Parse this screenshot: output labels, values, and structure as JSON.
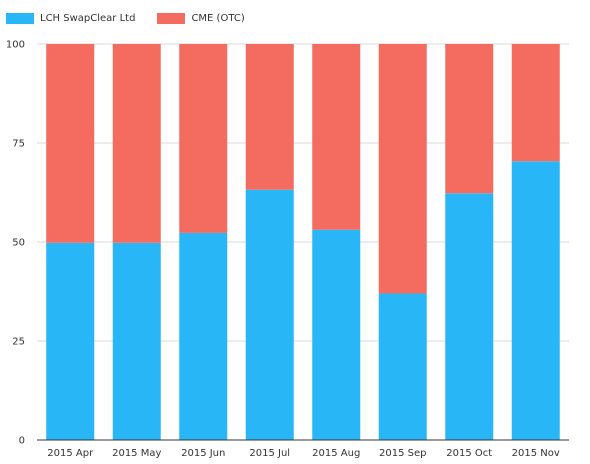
{
  "chart_data": {
    "type": "bar",
    "stacked": true,
    "title": "",
    "xlabel": "",
    "ylabel": "",
    "categories": [
      "2015 Apr",
      "2015 May",
      "2015 Jun",
      "2015 Jul",
      "2015 Aug",
      "2015 Sep",
      "2015 Oct",
      "2015 Nov"
    ],
    "series": [
      {
        "name": "LCH SwapClear Ltd",
        "color": "#29b6f6",
        "values": [
          49.8,
          49.8,
          52.3,
          63.2,
          53.1,
          37.0,
          62.3,
          70.4
        ]
      },
      {
        "name": "CME (OTC)",
        "color": "#f46b5f",
        "values": [
          50.2,
          50.2,
          47.7,
          36.8,
          46.9,
          63.0,
          37.7,
          29.6
        ]
      }
    ],
    "ylim": [
      0,
      100
    ],
    "yticks": [
      "0",
      "25",
      "50",
      "75",
      "100"
    ],
    "grid": true,
    "legend": "top-left"
  }
}
